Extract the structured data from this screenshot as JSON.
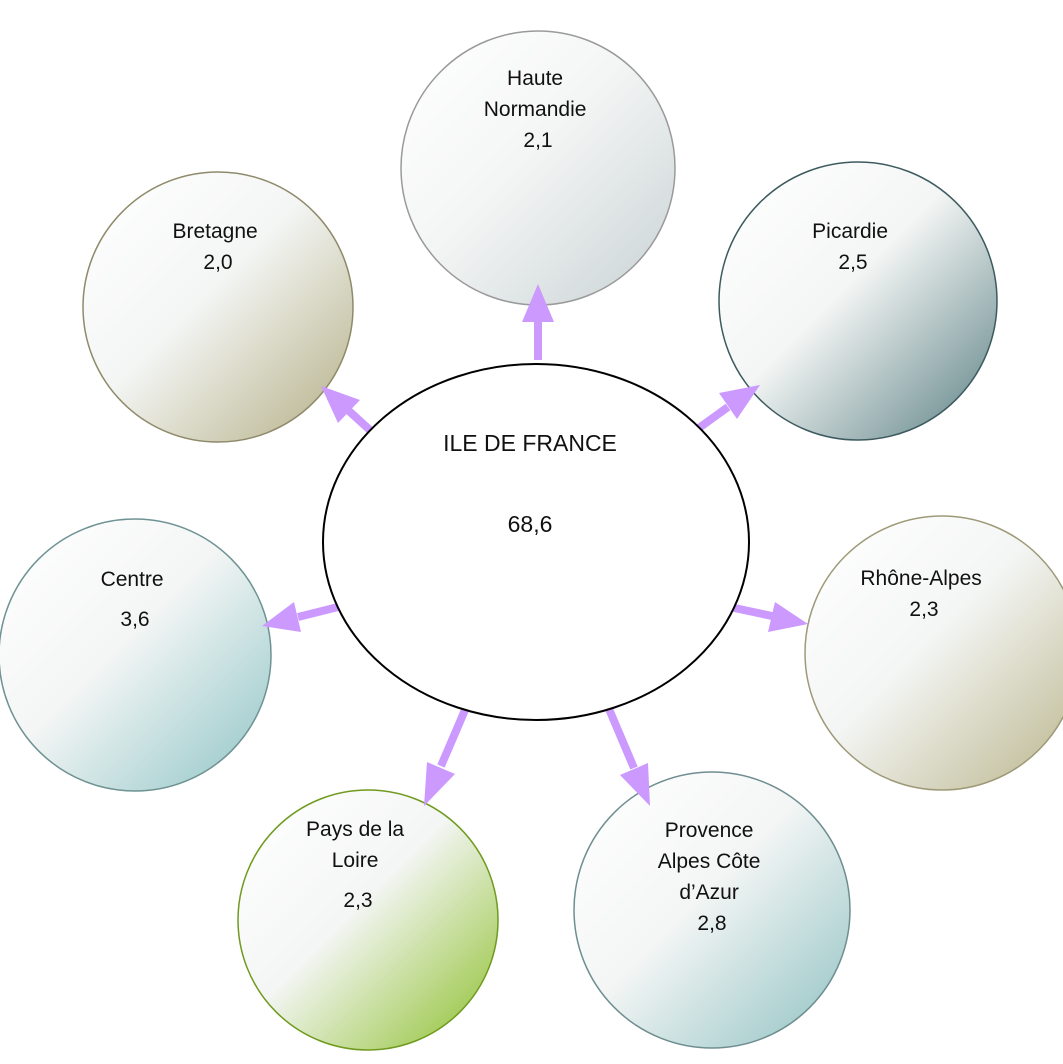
{
  "center": {
    "title": "ILE DE FRANCE",
    "value": "68,6"
  },
  "regions": [
    {
      "id": "haute-normandie",
      "lines": [
        "Haute",
        "Normandie",
        "2,1"
      ],
      "gradient_color": "#c9d2d4",
      "edge_color": "#9a9a9a"
    },
    {
      "id": "picardie",
      "lines": [
        "Picardie",
        "2,5"
      ],
      "gradient_color": "#5a7f83",
      "edge_color": "#3d5a5e"
    },
    {
      "id": "rhone-alpes",
      "lines": [
        "Rhône-Alpes",
        "2,3"
      ],
      "gradient_color": "#b9b48a",
      "edge_color": "#9e9a78"
    },
    {
      "id": "provence-alpes-cote-dazur",
      "lines": [
        "Provence",
        "Alpes Côte",
        "d’Azur",
        "2,8"
      ],
      "gradient_color": "#8fc1c2",
      "edge_color": "#6f8e90"
    },
    {
      "id": "pays-de-la-loire",
      "lines": [
        "Pays de la",
        "Loire",
        "2,3"
      ],
      "gradient_color": "#8cbf2a",
      "edge_color": "#6f9a1e"
    },
    {
      "id": "centre",
      "lines": [
        "Centre",
        "3,6"
      ],
      "gradient_color": "#8fc4c6",
      "edge_color": "#6f9293"
    },
    {
      "id": "bretagne",
      "lines": [
        "Bretagne",
        "2,0"
      ],
      "gradient_color": "#b3ae84",
      "edge_color": "#8e8a6a"
    }
  ],
  "arrow_color": "#cc99ff"
}
